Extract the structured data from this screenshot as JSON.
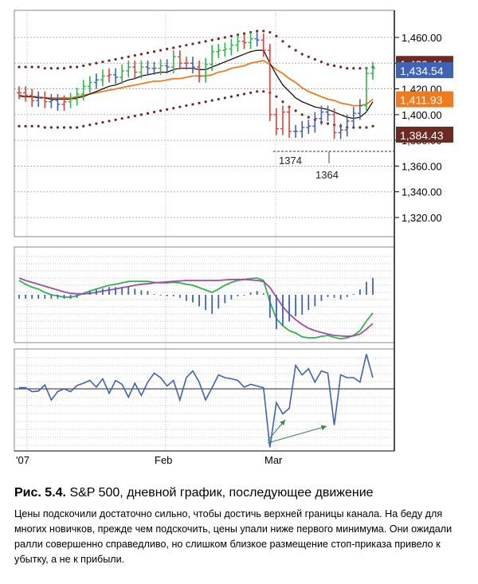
{
  "chart_data": [
    {
      "type": "candlestick",
      "title": "",
      "price_axis": {
        "ticks": [
          "1,460.00",
          "1,440.00",
          "1,420.00",
          "1,400.00",
          "1,380.00",
          "1,360.00",
          "1,340.00",
          "1,320.00"
        ],
        "range": [
          1307,
          1472
        ]
      },
      "date_ticks": [
        "'07",
        "Feb",
        "Mar"
      ],
      "price_tags": [
        {
          "label": "1,439.41",
          "value": 1439.41,
          "color": "#6b2a22"
        },
        {
          "label": "1,434.54",
          "value": 1434.54,
          "color": "#3e62b4"
        },
        {
          "label": "1,411.93",
          "value": 1411.93,
          "color": "#f07a1e"
        },
        {
          "label": "1,384.43",
          "value": 1384.43,
          "color": "#6b2a22"
        }
      ],
      "annotations": [
        {
          "text": "1374",
          "value": 1374
        },
        {
          "text": "1364",
          "value": 1364
        }
      ],
      "closes": [
        1417,
        1415,
        1411,
        1413,
        1410,
        1411,
        1408,
        1410,
        1412,
        1416,
        1422,
        1425,
        1427,
        1430,
        1431,
        1429,
        1434,
        1437,
        1433,
        1437,
        1436,
        1436,
        1438,
        1437,
        1445,
        1440,
        1440,
        1437,
        1430,
        1439,
        1449,
        1450,
        1451,
        1454,
        1457,
        1456,
        1459,
        1458,
        1450,
        1400,
        1389,
        1402,
        1387,
        1387,
        1390,
        1391,
        1397,
        1402,
        1400,
        1386,
        1388,
        1395,
        1401,
        1407,
        1432,
        1436
      ],
      "bar_colors": [
        "red",
        "red",
        "red",
        "blue",
        "red",
        "blue",
        "blue",
        "red",
        "green",
        "green",
        "green",
        "green",
        "blue",
        "green",
        "red",
        "blue",
        "green",
        "green",
        "red",
        "green",
        "blue",
        "blue",
        "green",
        "blue",
        "green",
        "red",
        "red",
        "blue",
        "red",
        "green",
        "green",
        "green",
        "green",
        "green",
        "green",
        "red",
        "green",
        "blue",
        "red",
        "red",
        "red",
        "red",
        "red",
        "blue",
        "blue",
        "blue",
        "blue",
        "blue",
        "blue",
        "red",
        "blue",
        "blue",
        "blue",
        "blue",
        "green",
        "green"
      ],
      "series": [
        {
          "key": "ema_slow",
          "color": "#f07a1e",
          "values": [
            1414,
            1414,
            1414,
            1414,
            1413,
            1413,
            1413,
            1413,
            1413,
            1414,
            1415,
            1416,
            1417,
            1418,
            1419,
            1420,
            1421,
            1422,
            1423,
            1424,
            1425,
            1426,
            1426,
            1427,
            1428,
            1428,
            1429,
            1430,
            1430,
            1430,
            1431,
            1433,
            1434,
            1436,
            1437,
            1438,
            1440,
            1441,
            1442,
            1439,
            1435,
            1432,
            1428,
            1425,
            1421,
            1418,
            1416,
            1414,
            1412,
            1411,
            1409,
            1408,
            1407,
            1407,
            1408,
            1412
          ]
        },
        {
          "key": "ema_fast",
          "color": "#000000",
          "values": [
            1415,
            1414,
            1414,
            1413,
            1413,
            1412,
            1412,
            1412,
            1412,
            1413,
            1414,
            1416,
            1418,
            1420,
            1422,
            1423,
            1425,
            1427,
            1428,
            1430,
            1431,
            1432,
            1433,
            1433,
            1435,
            1436,
            1436,
            1436,
            1435,
            1435,
            1437,
            1439,
            1441,
            1443,
            1445,
            1447,
            1449,
            1450,
            1450,
            1440,
            1431,
            1423,
            1418,
            1413,
            1410,
            1408,
            1406,
            1405,
            1404,
            1402,
            1400,
            1398,
            1397,
            1398,
            1402,
            1410
          ]
        },
        {
          "key": "channel_upper",
          "color": "#6b2a22",
          "values": [
            1437,
            1437,
            1437,
            1437,
            1436,
            1436,
            1436,
            1436,
            1437,
            1437,
            1438,
            1439,
            1440,
            1441,
            1442,
            1443,
            1444,
            1445,
            1446,
            1447,
            1448,
            1449,
            1450,
            1451,
            1452,
            1453,
            1454,
            1455,
            1456,
            1457,
            1458,
            1459,
            1460,
            1461,
            1462,
            1463,
            1464,
            1465,
            1465,
            1464,
            1461,
            1457,
            1453,
            1450,
            1447,
            1445,
            1443,
            1441,
            1439,
            1438,
            1437,
            1436,
            1436,
            1436,
            1436,
            1437
          ]
        },
        {
          "key": "channel_lower",
          "color": "#6b2a22",
          "values": [
            1391,
            1391,
            1391,
            1391,
            1390,
            1390,
            1390,
            1390,
            1390,
            1390,
            1391,
            1392,
            1393,
            1394,
            1395,
            1396,
            1397,
            1398,
            1399,
            1400,
            1401,
            1402,
            1403,
            1404,
            1405,
            1406,
            1407,
            1408,
            1409,
            1410,
            1411,
            1412,
            1413,
            1414,
            1415,
            1416,
            1417,
            1418,
            1418,
            1417,
            1414,
            1410,
            1406,
            1403,
            1400,
            1398,
            1396,
            1394,
            1393,
            1392,
            1391,
            1390,
            1390,
            1390,
            1390,
            1391
          ]
        }
      ]
    },
    {
      "type": "macd",
      "ylim": [
        -1,
        1
      ],
      "series": [
        {
          "key": "macd_line",
          "color": "#2fb44a",
          "values": [
            0.3,
            0.22,
            0.16,
            0.12,
            0.05,
            0.0,
            -0.02,
            -0.05,
            -0.05,
            -0.02,
            0.03,
            0.08,
            0.12,
            0.16,
            0.2,
            0.22,
            0.25,
            0.28,
            0.28,
            0.28,
            0.28,
            0.26,
            0.25,
            0.25,
            0.26,
            0.25,
            0.22,
            0.2,
            0.15,
            0.1,
            0.05,
            0.12,
            0.2,
            0.26,
            0.3,
            0.32,
            0.34,
            0.35,
            0.3,
            -0.15,
            -0.5,
            -0.65,
            -0.75,
            -0.8,
            -0.88,
            -0.9,
            -0.9,
            -0.87,
            -0.85,
            -0.89,
            -0.92,
            -0.9,
            -0.85,
            -0.75,
            -0.55,
            -0.38
          ]
        },
        {
          "key": "signal_line",
          "color": "#a34aa6",
          "values": [
            0.35,
            0.3,
            0.26,
            0.22,
            0.18,
            0.14,
            0.1,
            0.06,
            0.03,
            0.02,
            0.02,
            0.03,
            0.05,
            0.08,
            0.1,
            0.12,
            0.15,
            0.17,
            0.2,
            0.22,
            0.23,
            0.25,
            0.26,
            0.27,
            0.28,
            0.29,
            0.3,
            0.3,
            0.3,
            0.3,
            0.3,
            0.3,
            0.31,
            0.32,
            0.32,
            0.32,
            0.31,
            0.3,
            0.28,
            0.15,
            -0.05,
            -0.25,
            -0.4,
            -0.52,
            -0.62,
            -0.7,
            -0.75,
            -0.79,
            -0.82,
            -0.85,
            -0.86,
            -0.87,
            -0.86,
            -0.82,
            -0.72,
            -0.6
          ]
        },
        {
          "key": "histogram",
          "color": "#3e62b4",
          "values": [
            -0.05,
            -0.05,
            -0.05,
            -0.05,
            -0.05,
            -0.05,
            -0.05,
            -0.05,
            -0.05,
            -0.04,
            0.01,
            0.05,
            0.07,
            0.08,
            0.1,
            0.1,
            0.1,
            0.11,
            0.08,
            0.06,
            0.05,
            0.01,
            -0.01,
            -0.02,
            -0.02,
            -0.04,
            -0.08,
            -0.1,
            -0.15,
            -0.2,
            -0.25,
            -0.18,
            -0.11,
            -0.06,
            -0.02,
            0.0,
            0.03,
            0.05,
            0.02,
            -0.3,
            -0.45,
            -0.4,
            -0.35,
            -0.28,
            -0.26,
            -0.2,
            -0.15,
            -0.08,
            -0.03,
            -0.04,
            -0.06,
            -0.03,
            0.01,
            0.07,
            0.17,
            0.22
          ]
        }
      ]
    },
    {
      "type": "line",
      "series": [
        {
          "key": "force_index",
          "color": "#3e62b4",
          "values": [
            0.02,
            0.02,
            -0.05,
            -0.04,
            0.07,
            -0.2,
            -0.05,
            0.0,
            -0.05,
            0.06,
            0.1,
            0.15,
            0.03,
            0.18,
            -0.08,
            0.15,
            0.08,
            -0.15,
            0.1,
            -0.12,
            0.12,
            0.28,
            0.2,
            0.05,
            0.15,
            -0.2,
            0.2,
            0.32,
            0.12,
            -0.2,
            0.02,
            0.25,
            0.2,
            0.18,
            0.15,
            0.03,
            0.08,
            0.05,
            0.02,
            -1.05,
            -0.25,
            -0.45,
            -0.35,
            0.42,
            0.25,
            0.36,
            0.12,
            0.32,
            0.28,
            -0.65,
            0.25,
            0.2,
            0.2,
            0.12,
            0.62,
            0.2
          ]
        }
      ],
      "zero_line": true,
      "annotations": [
        {
          "text": "bullish divergence arrows"
        }
      ]
    }
  ],
  "caption": {
    "figure_label": "Рис. 5.4.",
    "title": "S&P 500, дневной график, последующее движение",
    "body": "Цены подскочили достаточно сильно, чтобы достичь верхней границы канала. На беду для многих новичков, прежде чем подскочить, цены упали ниже первого минимума. Они ожидали ралли совершенно справедливо, но слишком близкое размещение стоп-приказа привело к убытку, а не к прибыли."
  }
}
